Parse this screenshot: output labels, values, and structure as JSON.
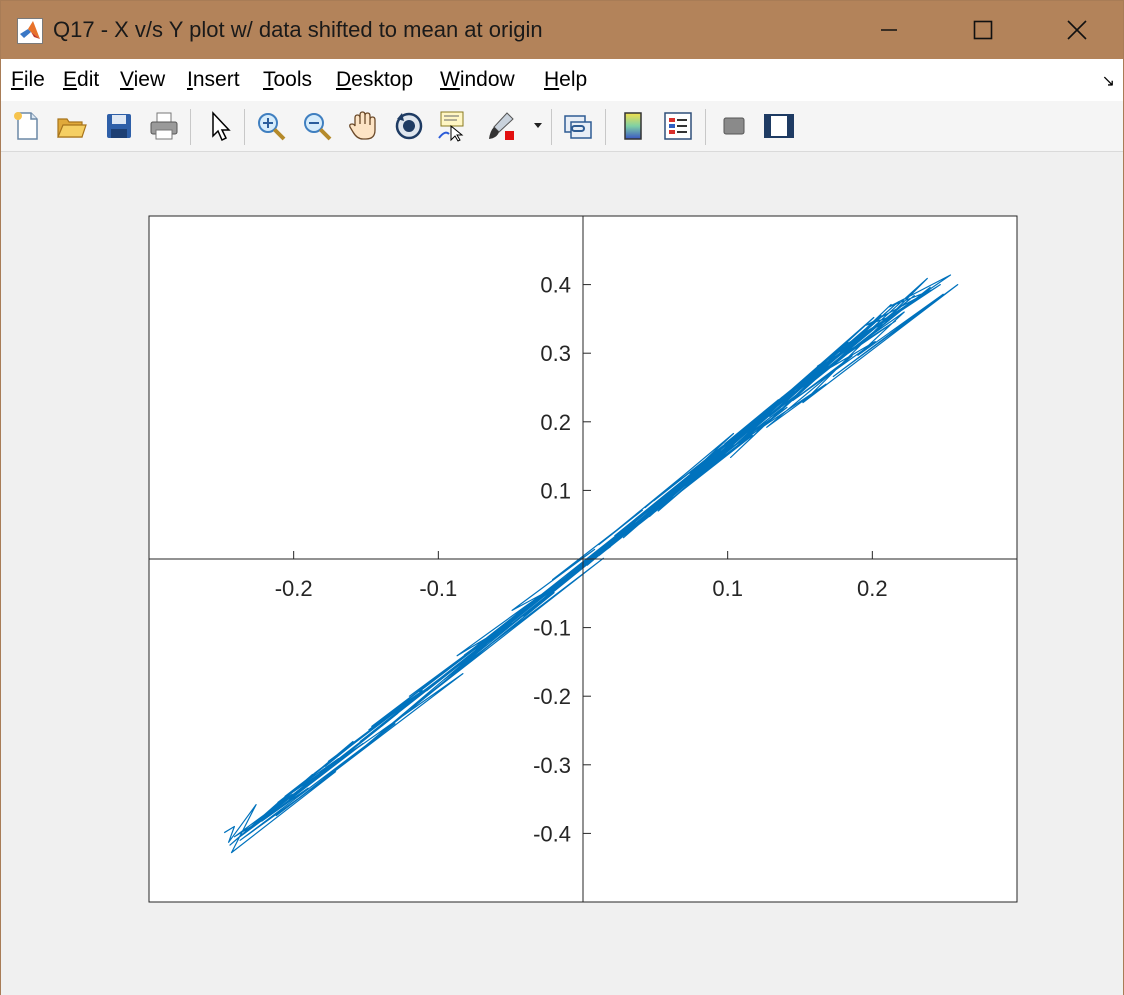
{
  "window": {
    "title": "Q17 - X v/s Y plot w/ data shifted to mean at origin",
    "controls": {
      "minimize": "minimize",
      "maximize": "maximize",
      "close": "close"
    }
  },
  "menu": {
    "items": [
      {
        "mnemonic": "F",
        "rest": "ile"
      },
      {
        "mnemonic": "E",
        "rest": "dit"
      },
      {
        "mnemonic": "V",
        "rest": "iew"
      },
      {
        "mnemonic": "I",
        "rest": "nsert"
      },
      {
        "mnemonic": "T",
        "rest": "ools"
      },
      {
        "mnemonic": "D",
        "rest": "esktop"
      },
      {
        "mnemonic": "W",
        "rest": "indow"
      },
      {
        "mnemonic": "H",
        "rest": "elp"
      }
    ],
    "dock_arrow": "↘"
  },
  "toolbar": {
    "icons": [
      "new-figure-icon",
      "open-file-icon",
      "save-icon",
      "print-icon",
      "edit-plot-arrow-icon",
      "zoom-in-icon",
      "zoom-out-icon",
      "pan-hand-icon",
      "rotate-3d-icon",
      "data-cursor-icon",
      "brush-icon",
      "link-plot-icon",
      "colorbar-icon",
      "legend-icon",
      "hide-plot-tools-icon",
      "show-plot-tools-icon"
    ]
  },
  "colors": {
    "line": "#0072bd",
    "axes": "#262626",
    "figure_bg": "#f0f0f0",
    "titlebar": "#b3835a"
  },
  "chart_data": {
    "type": "line",
    "title": "",
    "xlabel": "",
    "ylabel": "",
    "xlim": [
      -0.3,
      0.3
    ],
    "ylim": [
      -0.5,
      0.5
    ],
    "xticks": [
      -0.2,
      -0.1,
      0.1,
      0.2
    ],
    "yticks": [
      -0.4,
      -0.3,
      -0.2,
      -0.1,
      0.1,
      0.2,
      0.3,
      0.4
    ],
    "xtick_labels": [
      "-0.2",
      "-0.1",
      "0.1",
      "0.2"
    ],
    "ytick_labels": [
      "-0.4",
      "-0.3",
      "-0.2",
      "-0.1",
      "0.1",
      "0.2",
      "0.3",
      "0.4"
    ],
    "axis_location": "origin",
    "box": true,
    "grid": false,
    "series": [
      {
        "x": [
          -0.248,
          -0.241,
          -0.245,
          -0.226,
          -0.243,
          -0.171,
          -0.237,
          -0.13,
          -0.212,
          -0.083,
          -0.19,
          -0.067,
          -0.158,
          -0.02,
          -0.119,
          0.014,
          -0.096,
          0.049,
          -0.063,
          0.089,
          -0.041,
          0.108,
          -0.027,
          0.137,
          0.012,
          0.164,
          0.046,
          0.185,
          0.068,
          0.206,
          0.102,
          0.213,
          0.123,
          0.238,
          0.152,
          0.259,
          0.173,
          0.249,
          0.19,
          0.222,
          0.181,
          0.216,
          0.157,
          0.202,
          0.145,
          0.186,
          0.127,
          0.168,
          0.095,
          0.141,
          0.071,
          0.117,
          0.039,
          0.08,
          0.011,
          0.052,
          -0.018,
          0.019,
          -0.051,
          -0.012,
          -0.082,
          -0.044,
          -0.113,
          -0.079,
          -0.146,
          -0.111,
          -0.176,
          -0.14,
          -0.206,
          -0.169,
          -0.234,
          -0.201,
          -0.241,
          -0.218,
          -0.236,
          -0.208,
          -0.231,
          -0.19,
          -0.222,
          -0.152,
          -0.211,
          -0.118,
          -0.186,
          -0.07,
          -0.154,
          -0.034,
          -0.123,
          0.006,
          -0.09,
          0.039,
          -0.057,
          0.077,
          -0.029,
          0.105,
          0.003,
          0.139,
          0.028,
          0.166,
          0.052,
          0.189,
          0.076,
          0.201,
          0.104,
          0.218,
          0.129,
          0.24,
          0.153,
          0.229,
          0.161,
          0.205,
          0.145,
          0.183,
          0.121,
          0.164,
          0.098,
          0.135,
          0.074,
          0.104,
          0.043,
          0.069,
          0.011,
          0.041,
          -0.021,
          0.008,
          -0.049,
          -0.028,
          -0.087,
          -0.061,
          -0.12,
          -0.094,
          -0.148,
          -0.126,
          -0.178,
          -0.159,
          -0.207,
          -0.187,
          -0.229,
          -0.209,
          -0.244,
          -0.225,
          -0.239,
          -0.199,
          -0.226,
          -0.166,
          -0.203,
          -0.128,
          -0.173,
          -0.089,
          -0.142,
          -0.049,
          -0.108,
          -0.011,
          -0.074,
          0.026,
          -0.041,
          0.061,
          -0.008,
          0.095,
          0.022,
          0.13,
          0.049,
          0.158,
          0.083,
          0.181,
          0.107,
          0.197,
          0.137,
          0.211,
          0.196,
          0.241,
          0.211,
          0.254,
          0.162,
          0.247,
          0.174
        ],
        "y": [
          -0.399,
          -0.39,
          -0.413,
          -0.358,
          -0.428,
          -0.31,
          -0.41,
          -0.24,
          -0.374,
          -0.167,
          -0.326,
          -0.124,
          -0.286,
          -0.049,
          -0.218,
          0.001,
          -0.176,
          0.072,
          -0.118,
          0.139,
          -0.083,
          0.182,
          -0.053,
          0.219,
          0.009,
          0.279,
          0.062,
          0.322,
          0.103,
          0.355,
          0.148,
          0.371,
          0.19,
          0.409,
          0.228,
          0.4,
          0.266,
          0.386,
          0.297,
          0.36,
          0.299,
          0.347,
          0.262,
          0.317,
          0.231,
          0.296,
          0.192,
          0.255,
          0.151,
          0.221,
          0.107,
          0.18,
          0.051,
          0.127,
          0.005,
          0.074,
          -0.04,
          0.018,
          -0.091,
          -0.031,
          -0.14,
          -0.082,
          -0.193,
          -0.137,
          -0.244,
          -0.192,
          -0.295,
          -0.238,
          -0.346,
          -0.291,
          -0.399,
          -0.343,
          -0.405,
          -0.375,
          -0.403,
          -0.357,
          -0.394,
          -0.334,
          -0.382,
          -0.269,
          -0.355,
          -0.203,
          -0.313,
          -0.128,
          -0.266,
          -0.066,
          -0.208,
          0.003,
          -0.154,
          0.061,
          -0.104,
          0.125,
          -0.056,
          0.177,
          -0.009,
          0.235,
          0.031,
          0.283,
          0.07,
          0.318,
          0.121,
          0.352,
          0.164,
          0.375,
          0.208,
          0.396,
          0.251,
          0.384,
          0.269,
          0.352,
          0.238,
          0.316,
          0.205,
          0.281,
          0.168,
          0.232,
          0.124,
          0.183,
          0.075,
          0.121,
          0.021,
          0.071,
          -0.03,
          0.014,
          -0.075,
          -0.051,
          -0.141,
          -0.108,
          -0.2,
          -0.16,
          -0.249,
          -0.214,
          -0.302,
          -0.266,
          -0.351,
          -0.314,
          -0.391,
          -0.352,
          -0.417,
          -0.383,
          -0.408,
          -0.342,
          -0.387,
          -0.287,
          -0.351,
          -0.225,
          -0.299,
          -0.16,
          -0.247,
          -0.094,
          -0.192,
          -0.027,
          -0.131,
          0.033,
          -0.076,
          0.097,
          -0.019,
          0.158,
          0.034,
          0.219,
          0.085,
          0.268,
          0.14,
          0.306,
          0.18,
          0.331,
          0.235,
          0.352,
          0.341,
          0.392,
          0.367,
          0.414,
          0.281,
          0.4,
          0.302
        ]
      }
    ]
  }
}
